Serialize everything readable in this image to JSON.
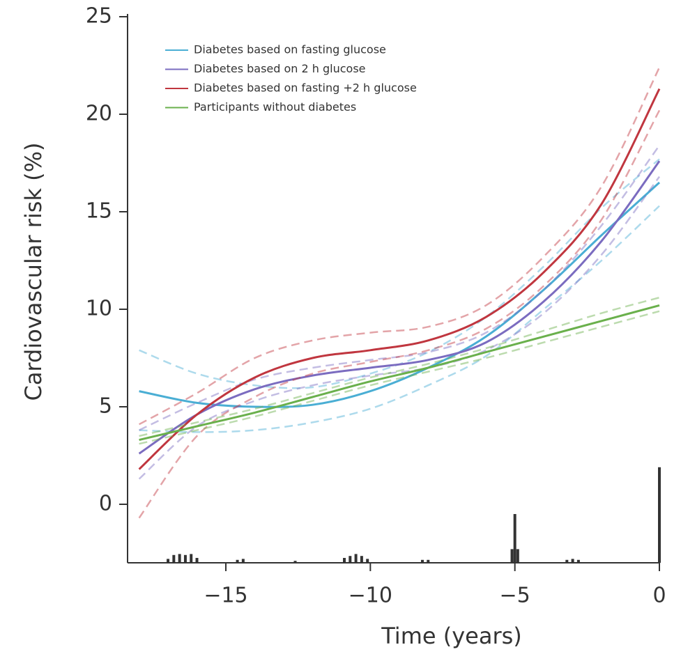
{
  "chart_data": {
    "type": "line",
    "ylabel": "Cardiovascular risk (%)",
    "xlabel": "Time (years)",
    "x": [
      -18,
      -16,
      -14,
      -12,
      -10,
      -8,
      -6,
      -4,
      -2,
      0
    ],
    "xlim": [
      -18.4,
      0
    ],
    "xticks": [
      {
        "value": -15,
        "label": "−15"
      },
      {
        "value": -10,
        "label": "−10"
      },
      {
        "value": -5,
        "label": "−5"
      },
      0
    ],
    "ylim": [
      -3,
      25
    ],
    "yticks": [
      0,
      5,
      10,
      15,
      20,
      25
    ],
    "legend": "upper-left",
    "series": [
      {
        "name": "Diabetes based on fasting glucose",
        "color": "#4aaed4",
        "values": [
          5.8,
          5.2,
          5.0,
          5.1,
          5.8,
          7.0,
          8.6,
          11.0,
          13.8,
          16.5
        ],
        "lower": [
          3.8,
          3.7,
          3.8,
          4.2,
          4.9,
          6.1,
          7.6,
          10.0,
          12.5,
          15.3
        ],
        "upper": [
          7.9,
          6.7,
          6.1,
          6.0,
          6.7,
          7.8,
          9.6,
          12.2,
          15.2,
          17.7
        ]
      },
      {
        "name": "Diabetes based on 2 h glucose",
        "color": "#7b6cc0",
        "values": [
          2.6,
          4.6,
          5.9,
          6.6,
          7.0,
          7.4,
          8.3,
          10.4,
          13.5,
          17.6
        ],
        "lower": [
          1.3,
          4.0,
          5.3,
          6.1,
          6.6,
          7.0,
          7.9,
          9.8,
          12.8,
          16.8
        ],
        "upper": [
          3.8,
          5.2,
          6.4,
          7.0,
          7.4,
          7.8,
          8.8,
          11.0,
          14.3,
          18.4
        ]
      },
      {
        "name": "Diabetes based on fasting +2 h glucose",
        "color": "#c0363f",
        "values": [
          1.8,
          4.6,
          6.5,
          7.5,
          7.9,
          8.4,
          9.6,
          11.9,
          15.4,
          21.3
        ],
        "lower": [
          -0.7,
          3.5,
          5.5,
          6.7,
          7.3,
          7.9,
          9.0,
          11.2,
          14.6,
          20.2
        ],
        "upper": [
          4.1,
          5.7,
          7.5,
          8.4,
          8.8,
          9.1,
          10.2,
          12.7,
          16.3,
          22.4
        ]
      },
      {
        "name": "Participants without diabetes",
        "color": "#6ab04c",
        "values": [
          3.3,
          4.0,
          4.7,
          5.5,
          6.3,
          7.0,
          7.8,
          8.6,
          9.4,
          10.2
        ],
        "lower": [
          3.1,
          3.8,
          4.5,
          5.3,
          6.1,
          6.8,
          7.5,
          8.3,
          9.1,
          9.9
        ],
        "upper": [
          3.5,
          4.2,
          4.9,
          5.7,
          6.5,
          7.2,
          8.0,
          8.9,
          9.8,
          10.6
        ]
      }
    ],
    "histogram": {
      "color": "#333333",
      "x": [
        -17,
        -16.8,
        -16.6,
        -16.4,
        -16.2,
        -16,
        -14.6,
        -14.4,
        -12.6,
        -10.9,
        -10.7,
        -10.5,
        -10.3,
        -10.1,
        -8.2,
        -8,
        -5.1,
        -5.0,
        -4.9,
        -3.2,
        -3.0,
        -2.8,
        0
      ],
      "values": [
        -2.8,
        -2.6,
        -2.55,
        -2.6,
        -2.55,
        -2.75,
        -2.85,
        -2.8,
        -2.9,
        -2.75,
        -2.65,
        -2.55,
        -2.65,
        -2.8,
        -2.85,
        -2.85,
        -2.3,
        -0.5,
        -2.3,
        -2.85,
        -2.8,
        -2.85,
        1.9
      ]
    }
  }
}
